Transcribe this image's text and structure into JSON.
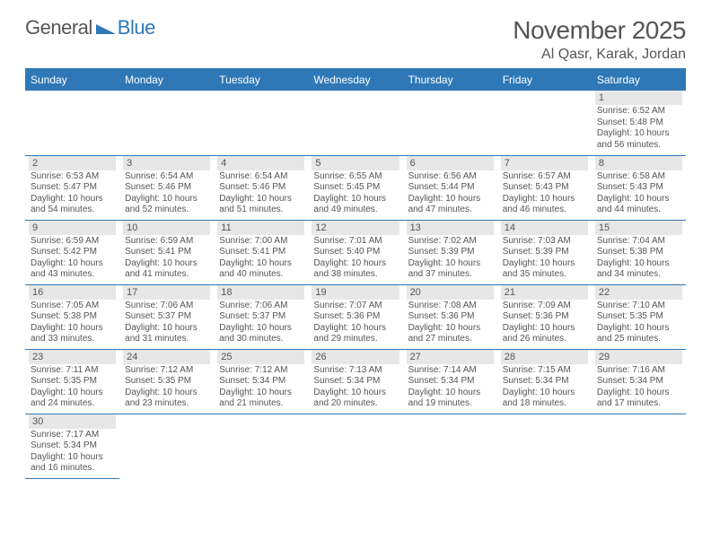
{
  "logo": {
    "text1": "General",
    "text2": "Blue"
  },
  "header": {
    "title": "November 2025",
    "subtitle": "Al Qasr, Karak, Jordan"
  },
  "colors": {
    "accent": "#2f78b7",
    "header_bg": "#2f78b7",
    "header_text": "#ffffff",
    "daynum_bg": "#e7e7e7",
    "rule": "#2f78b7",
    "text": "#555555",
    "page_bg": "#ffffff"
  },
  "days": [
    "Sunday",
    "Monday",
    "Tuesday",
    "Wednesday",
    "Thursday",
    "Friday",
    "Saturday"
  ],
  "weeks": [
    [
      null,
      null,
      null,
      null,
      null,
      null,
      {
        "n": "1",
        "sunrise": "Sunrise: 6:52 AM",
        "sunset": "Sunset: 5:48 PM",
        "daylight": "Daylight: 10 hours and 56 minutes."
      }
    ],
    [
      {
        "n": "2",
        "sunrise": "Sunrise: 6:53 AM",
        "sunset": "Sunset: 5:47 PM",
        "daylight": "Daylight: 10 hours and 54 minutes."
      },
      {
        "n": "3",
        "sunrise": "Sunrise: 6:54 AM",
        "sunset": "Sunset: 5:46 PM",
        "daylight": "Daylight: 10 hours and 52 minutes."
      },
      {
        "n": "4",
        "sunrise": "Sunrise: 6:54 AM",
        "sunset": "Sunset: 5:46 PM",
        "daylight": "Daylight: 10 hours and 51 minutes."
      },
      {
        "n": "5",
        "sunrise": "Sunrise: 6:55 AM",
        "sunset": "Sunset: 5:45 PM",
        "daylight": "Daylight: 10 hours and 49 minutes."
      },
      {
        "n": "6",
        "sunrise": "Sunrise: 6:56 AM",
        "sunset": "Sunset: 5:44 PM",
        "daylight": "Daylight: 10 hours and 47 minutes."
      },
      {
        "n": "7",
        "sunrise": "Sunrise: 6:57 AM",
        "sunset": "Sunset: 5:43 PM",
        "daylight": "Daylight: 10 hours and 46 minutes."
      },
      {
        "n": "8",
        "sunrise": "Sunrise: 6:58 AM",
        "sunset": "Sunset: 5:43 PM",
        "daylight": "Daylight: 10 hours and 44 minutes."
      }
    ],
    [
      {
        "n": "9",
        "sunrise": "Sunrise: 6:59 AM",
        "sunset": "Sunset: 5:42 PM",
        "daylight": "Daylight: 10 hours and 43 minutes."
      },
      {
        "n": "10",
        "sunrise": "Sunrise: 6:59 AM",
        "sunset": "Sunset: 5:41 PM",
        "daylight": "Daylight: 10 hours and 41 minutes."
      },
      {
        "n": "11",
        "sunrise": "Sunrise: 7:00 AM",
        "sunset": "Sunset: 5:41 PM",
        "daylight": "Daylight: 10 hours and 40 minutes."
      },
      {
        "n": "12",
        "sunrise": "Sunrise: 7:01 AM",
        "sunset": "Sunset: 5:40 PM",
        "daylight": "Daylight: 10 hours and 38 minutes."
      },
      {
        "n": "13",
        "sunrise": "Sunrise: 7:02 AM",
        "sunset": "Sunset: 5:39 PM",
        "daylight": "Daylight: 10 hours and 37 minutes."
      },
      {
        "n": "14",
        "sunrise": "Sunrise: 7:03 AM",
        "sunset": "Sunset: 5:39 PM",
        "daylight": "Daylight: 10 hours and 35 minutes."
      },
      {
        "n": "15",
        "sunrise": "Sunrise: 7:04 AM",
        "sunset": "Sunset: 5:38 PM",
        "daylight": "Daylight: 10 hours and 34 minutes."
      }
    ],
    [
      {
        "n": "16",
        "sunrise": "Sunrise: 7:05 AM",
        "sunset": "Sunset: 5:38 PM",
        "daylight": "Daylight: 10 hours and 33 minutes."
      },
      {
        "n": "17",
        "sunrise": "Sunrise: 7:06 AM",
        "sunset": "Sunset: 5:37 PM",
        "daylight": "Daylight: 10 hours and 31 minutes."
      },
      {
        "n": "18",
        "sunrise": "Sunrise: 7:06 AM",
        "sunset": "Sunset: 5:37 PM",
        "daylight": "Daylight: 10 hours and 30 minutes."
      },
      {
        "n": "19",
        "sunrise": "Sunrise: 7:07 AM",
        "sunset": "Sunset: 5:36 PM",
        "daylight": "Daylight: 10 hours and 29 minutes."
      },
      {
        "n": "20",
        "sunrise": "Sunrise: 7:08 AM",
        "sunset": "Sunset: 5:36 PM",
        "daylight": "Daylight: 10 hours and 27 minutes."
      },
      {
        "n": "21",
        "sunrise": "Sunrise: 7:09 AM",
        "sunset": "Sunset: 5:36 PM",
        "daylight": "Daylight: 10 hours and 26 minutes."
      },
      {
        "n": "22",
        "sunrise": "Sunrise: 7:10 AM",
        "sunset": "Sunset: 5:35 PM",
        "daylight": "Daylight: 10 hours and 25 minutes."
      }
    ],
    [
      {
        "n": "23",
        "sunrise": "Sunrise: 7:11 AM",
        "sunset": "Sunset: 5:35 PM",
        "daylight": "Daylight: 10 hours and 24 minutes."
      },
      {
        "n": "24",
        "sunrise": "Sunrise: 7:12 AM",
        "sunset": "Sunset: 5:35 PM",
        "daylight": "Daylight: 10 hours and 23 minutes."
      },
      {
        "n": "25",
        "sunrise": "Sunrise: 7:12 AM",
        "sunset": "Sunset: 5:34 PM",
        "daylight": "Daylight: 10 hours and 21 minutes."
      },
      {
        "n": "26",
        "sunrise": "Sunrise: 7:13 AM",
        "sunset": "Sunset: 5:34 PM",
        "daylight": "Daylight: 10 hours and 20 minutes."
      },
      {
        "n": "27",
        "sunrise": "Sunrise: 7:14 AM",
        "sunset": "Sunset: 5:34 PM",
        "daylight": "Daylight: 10 hours and 19 minutes."
      },
      {
        "n": "28",
        "sunrise": "Sunrise: 7:15 AM",
        "sunset": "Sunset: 5:34 PM",
        "daylight": "Daylight: 10 hours and 18 minutes."
      },
      {
        "n": "29",
        "sunrise": "Sunrise: 7:16 AM",
        "sunset": "Sunset: 5:34 PM",
        "daylight": "Daylight: 10 hours and 17 minutes."
      }
    ],
    [
      {
        "n": "30",
        "sunrise": "Sunrise: 7:17 AM",
        "sunset": "Sunset: 5:34 PM",
        "daylight": "Daylight: 10 hours and 16 minutes."
      },
      null,
      null,
      null,
      null,
      null,
      null
    ]
  ]
}
